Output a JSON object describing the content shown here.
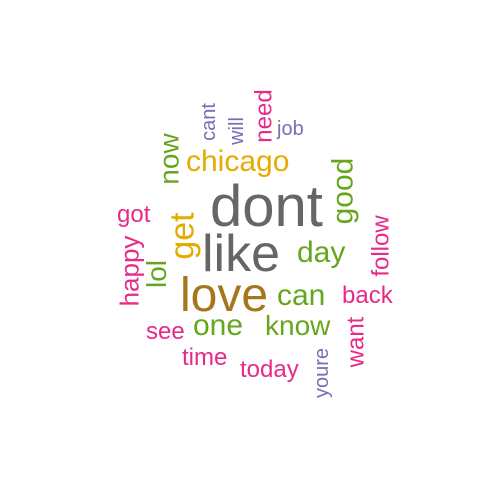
{
  "palette": {
    "gray": "#666666",
    "gold": "#e6ab02",
    "brown": "#a6761d",
    "green": "#66a61e",
    "pink": "#e7298a",
    "purple": "#7570b3"
  },
  "words": [
    {
      "text": "dont",
      "color": "#666666"
    },
    {
      "text": "like",
      "color": "#666666"
    },
    {
      "text": "love",
      "color": "#a6761d"
    },
    {
      "text": "chicago",
      "color": "#e6ab02"
    },
    {
      "text": "get",
      "color": "#e6ab02"
    },
    {
      "text": "good",
      "color": "#66a61e"
    },
    {
      "text": "day",
      "color": "#66a61e"
    },
    {
      "text": "can",
      "color": "#66a61e"
    },
    {
      "text": "one",
      "color": "#66a61e"
    },
    {
      "text": "know",
      "color": "#66a61e"
    },
    {
      "text": "now",
      "color": "#66a61e"
    },
    {
      "text": "lol",
      "color": "#66a61e"
    },
    {
      "text": "got",
      "color": "#e7298a"
    },
    {
      "text": "happy",
      "color": "#e7298a"
    },
    {
      "text": "see",
      "color": "#e7298a"
    },
    {
      "text": "time",
      "color": "#e7298a"
    },
    {
      "text": "today",
      "color": "#e7298a"
    },
    {
      "text": "back",
      "color": "#e7298a"
    },
    {
      "text": "want",
      "color": "#e7298a"
    },
    {
      "text": "follow",
      "color": "#e7298a"
    },
    {
      "text": "need",
      "color": "#e7298a"
    },
    {
      "text": "cant",
      "color": "#7570b3"
    },
    {
      "text": "will",
      "color": "#7570b3"
    },
    {
      "text": "job",
      "color": "#7570b3"
    },
    {
      "text": "youre",
      "color": "#7570b3"
    }
  ]
}
